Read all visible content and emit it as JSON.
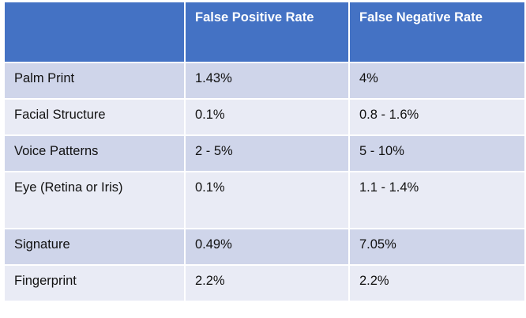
{
  "table": {
    "headers": [
      "",
      "False Positive Rate",
      "False Negative Rate"
    ],
    "rows": [
      [
        "Palm Print",
        "1.43%",
        "4%"
      ],
      [
        "Facial Structure",
        "0.1%",
        "0.8 - 1.6%"
      ],
      [
        "Voice Patterns",
        "2 - 5%",
        "5 - 10%"
      ],
      [
        "Eye (Retina or Iris)",
        "0.1%",
        "1.1 - 1.4%"
      ],
      [
        "Signature",
        "0.49%",
        "7.05%"
      ],
      [
        "Fingerprint",
        "2.2%",
        "2.2%"
      ]
    ]
  },
  "colors": {
    "header": "#4472c4",
    "row_dark": "#cfd5ea",
    "row_light": "#e9ebf5"
  }
}
